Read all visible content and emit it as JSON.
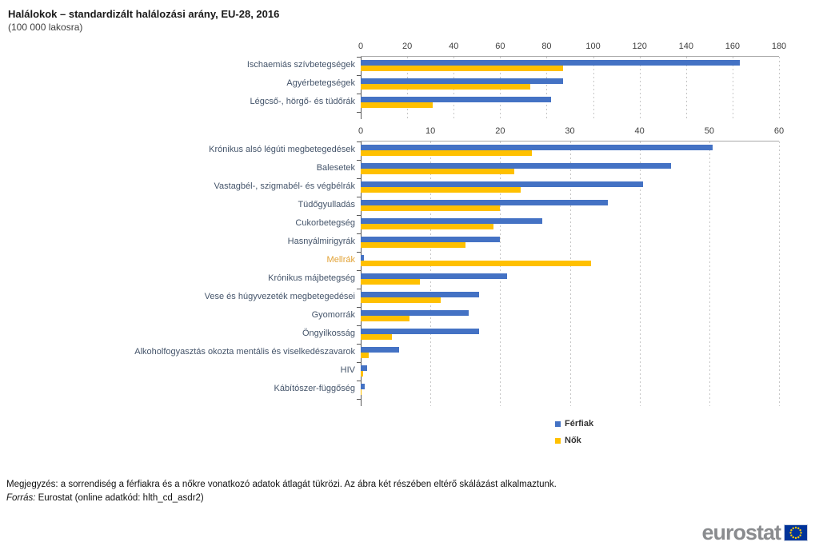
{
  "header": {
    "title": "Halálokok – standardizált halálozási arány,  EU-28, 2016",
    "subtitle": "(100 000 lakosra)"
  },
  "colors": {
    "men_bar": "#4472C4",
    "women_bar": "#FFC000",
    "category_label": "#44546A",
    "highlight_label": "#E2A235",
    "gridline": "#C6C6C6",
    "axis_line": "#595959",
    "eu_flag_blue": "#003399",
    "eu_star_yellow": "#FFCC00"
  },
  "chart_data": [
    {
      "type": "bar",
      "orientation": "horizontal",
      "xlabel": "",
      "ylabel": "",
      "xlim": [
        0,
        180
      ],
      "xticks": [
        0,
        20,
        40,
        60,
        80,
        100,
        120,
        140,
        160,
        180
      ],
      "grid": true,
      "categories": [
        "Ischaemiás szívbetegségek",
        "Agyérbetegségek",
        "Légcső-, hörgő- és tüdőrák"
      ],
      "series": [
        {
          "name": "Férfiak",
          "color": "#4472C4",
          "values": [
            163,
            87,
            82
          ]
        },
        {
          "name": "Nők",
          "color": "#FFC000",
          "values": [
            87,
            73,
            31
          ]
        }
      ]
    },
    {
      "type": "bar",
      "orientation": "horizontal",
      "xlabel": "",
      "ylabel": "",
      "xlim": [
        0,
        60
      ],
      "xticks": [
        0,
        10,
        20,
        30,
        40,
        50,
        60
      ],
      "grid": true,
      "highlight_category": "Mellrák",
      "categories": [
        "Krónikus alsó légúti megbetegedések",
        "Balesetek",
        "Vastagbél-, szigmabél- és végbélrák",
        "Tüdőgyulladás",
        "Cukorbetegség",
        "Hasnyálmirigyrák",
        "Mellrák",
        "Krónikus májbetegség",
        "Vese és húgyvezeték megbetegedései",
        "Gyomorrák",
        "Öngyilkosság",
        "Alkoholfogyasztás okozta mentális és viselkedészavarok",
        "HIV",
        "Kábítószer-függőség"
      ],
      "series": [
        {
          "name": "Férfiak",
          "color": "#4472C4",
          "values": [
            50.5,
            44.5,
            40.5,
            35.5,
            26,
            20,
            0.5,
            21,
            17,
            15.5,
            17,
            5.5,
            0.9,
            0.6
          ]
        },
        {
          "name": "Nők",
          "color": "#FFC000",
          "values": [
            24.5,
            22,
            23,
            20,
            19,
            15,
            33,
            8.5,
            11.5,
            7,
            4.5,
            1.1,
            0.3,
            0.1
          ]
        }
      ]
    }
  ],
  "legend": {
    "items": [
      {
        "label": "Férfiak",
        "color": "#4472C4"
      },
      {
        "label": "Nők",
        "color": "#FFC000"
      }
    ],
    "position": "bottom-right"
  },
  "notes": {
    "note_line": "Megjegyzés: a sorrendiség a férfiakra és a nőkre vonatkozó adatok átlagát tükrözi. Az ábra két részében eltérő skálázást alkalmaztunk.",
    "source_label": "Forrás:",
    "source_rest": " Eurostat (online adatkód: hlth_cd_asdr2)"
  },
  "logo": {
    "text": "eurostat"
  }
}
